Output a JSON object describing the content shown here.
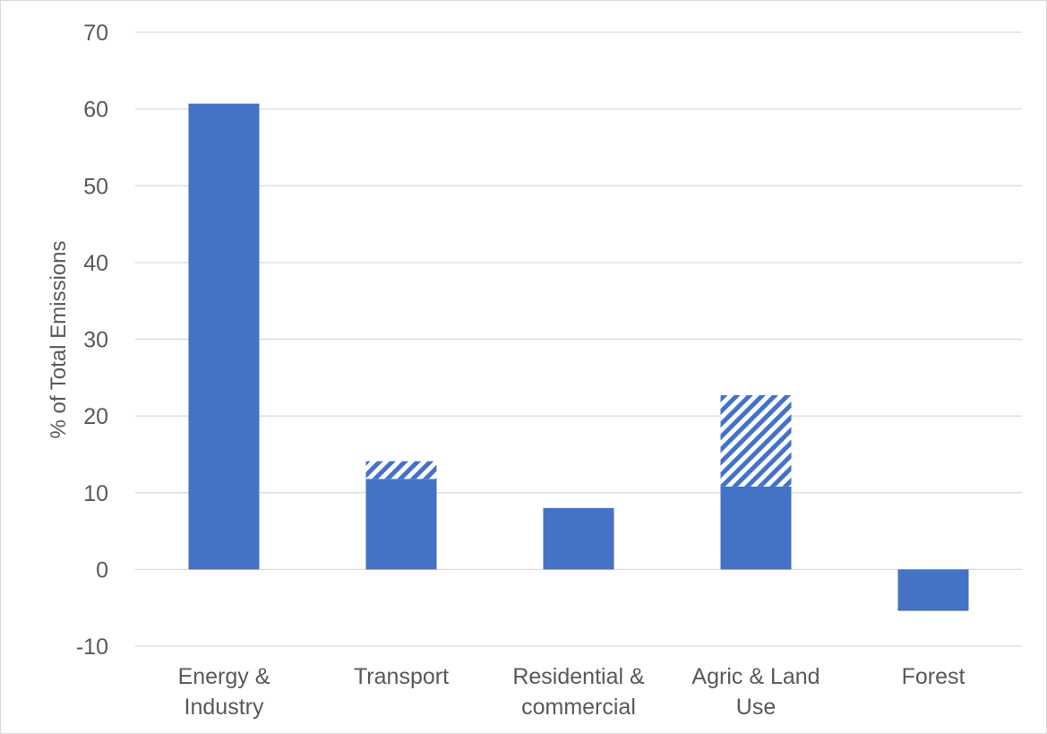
{
  "chart_data": {
    "type": "bar",
    "title": "",
    "xlabel": "",
    "ylabel": "% of Total Emissions",
    "ylim": [
      -10,
      70
    ],
    "yticks": [
      -10,
      0,
      10,
      20,
      30,
      40,
      50,
      60,
      70
    ],
    "ytick_labels": [
      "-10",
      "0",
      "10",
      "20",
      "30",
      "40",
      "50",
      "60",
      "70"
    ],
    "grid": true,
    "legend": "none",
    "stacked": true,
    "categories": [
      [
        "Energy &",
        "Industry"
      ],
      [
        "Transport"
      ],
      [
        "Residential &",
        "commercial"
      ],
      [
        "Agric & Land",
        "Use"
      ],
      [
        "Forest"
      ]
    ],
    "series": [
      {
        "style": "solid",
        "color": "#4472c4",
        "values": [
          60.7,
          11.8,
          8.0,
          10.8,
          -5.4
        ]
      },
      {
        "style": "hatched",
        "color": "#4472c4",
        "values": [
          0,
          2.3,
          0,
          11.9,
          0
        ]
      }
    ]
  }
}
